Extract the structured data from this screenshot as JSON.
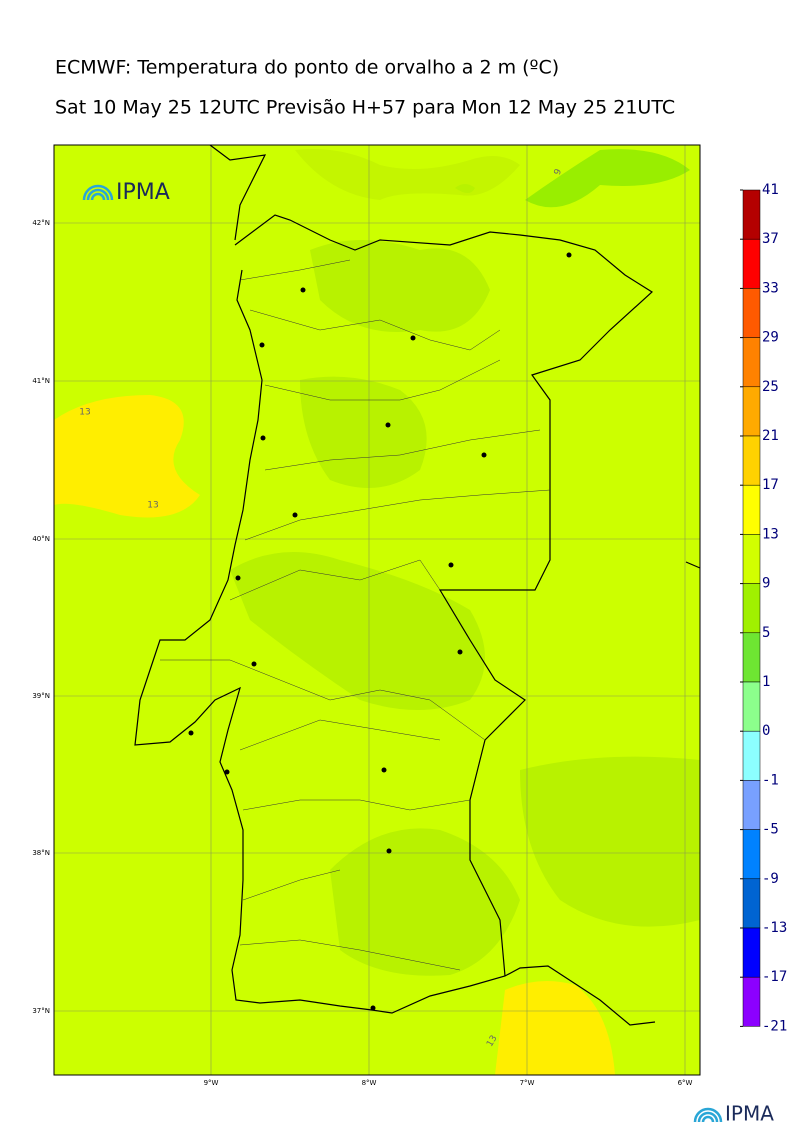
{
  "title": "ECMWF: Temperatura do ponto de orvalho a 2 m (ºC)",
  "subtitle": "Sat 10 May 25 12UTC Previsão H+57 para Mon 12 May 25 21UTC",
  "latitudes": [
    "42°N",
    "41°N",
    "40°N",
    "39°N",
    "38°N",
    "37°N"
  ],
  "longitudes": [
    "9°W",
    "8°W",
    "7°W",
    "6°W"
  ],
  "contour_labels": [
    "13",
    "13",
    "9",
    "13"
  ],
  "colorbar": {
    "levels": [
      41,
      37,
      33,
      29,
      25,
      21,
      17,
      13,
      9,
      5,
      1,
      0,
      -1,
      -5,
      -9,
      -13,
      -17,
      -21
    ],
    "colors": [
      "#b40000",
      "#ff0000",
      "#ff5a00",
      "#ff8200",
      "#ffaa00",
      "#ffd200",
      "#ffff00",
      "#d2ff00",
      "#a0f000",
      "#6ee632",
      "#8cff8c",
      "#8cffff",
      "#78a0ff",
      "#0082ff",
      "#0064d2",
      "#0000ff",
      "#8c00ff"
    ]
  },
  "logos": [
    "IPMA",
    "IPMA"
  ]
}
